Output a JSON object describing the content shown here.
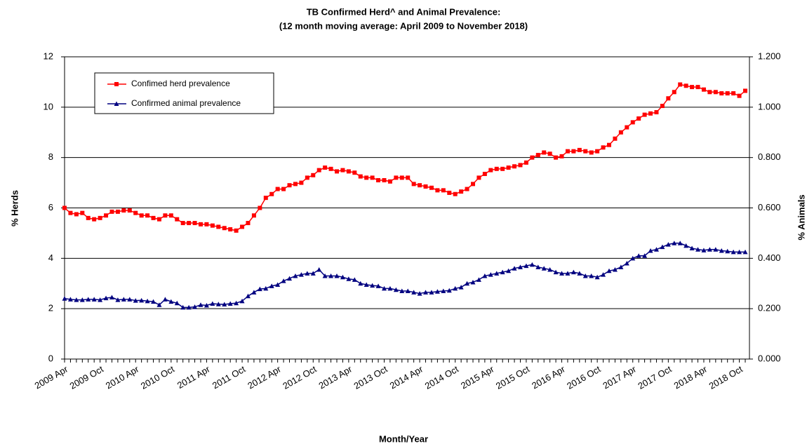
{
  "chart_data": {
    "type": "line",
    "title": "TB Confirmed Herd^ and Animal Prevalence:",
    "subtitle": "(12 month moving average: April 2009 to November 2018)",
    "x_label": "Month/Year",
    "y_label": "% Herds",
    "y2_label": "% Animals",
    "categories": [
      "2009 Apr",
      null,
      null,
      null,
      null,
      null,
      "2009 Oct",
      null,
      null,
      null,
      null,
      null,
      "2010 Apr",
      null,
      null,
      null,
      null,
      null,
      "2010 Oct",
      null,
      null,
      null,
      null,
      null,
      "2011 Apr",
      null,
      null,
      null,
      null,
      null,
      "2011 Oct",
      null,
      null,
      null,
      null,
      null,
      "2012 Apr",
      null,
      null,
      null,
      null,
      null,
      "2012 Oct",
      null,
      null,
      null,
      null,
      null,
      "2013 Apr",
      null,
      null,
      null,
      null,
      null,
      "2013 Oct",
      null,
      null,
      null,
      null,
      null,
      "2014 Apr",
      null,
      null,
      null,
      null,
      null,
      "2014 Oct",
      null,
      null,
      null,
      null,
      null,
      "2015 Apr",
      null,
      null,
      null,
      null,
      null,
      "2015 Oct",
      null,
      null,
      null,
      null,
      null,
      "2016 Apr",
      null,
      null,
      null,
      null,
      null,
      "2016 Oct",
      null,
      null,
      null,
      null,
      null,
      "2017 Apr",
      null,
      null,
      null,
      null,
      null,
      "2017 Oct",
      null,
      null,
      null,
      null,
      null,
      "2018 Apr",
      null,
      null,
      null,
      null,
      null,
      "2018 Oct",
      null
    ],
    "series": [
      {
        "name": "Confimed herd prevalence",
        "color": "#ff0000",
        "marker": "square",
        "values": [
          6.0,
          5.8,
          5.75,
          5.8,
          5.6,
          5.55,
          5.6,
          5.7,
          5.85,
          5.85,
          5.9,
          5.9,
          5.8,
          5.7,
          5.7,
          5.6,
          5.55,
          5.7,
          5.7,
          5.55,
          5.4,
          5.4,
          5.4,
          5.35,
          5.35,
          5.3,
          5.25,
          5.2,
          5.15,
          5.1,
          5.25,
          5.4,
          5.7,
          6.0,
          6.4,
          6.55,
          6.75,
          6.75,
          6.9,
          6.95,
          7.0,
          7.2,
          7.3,
          7.5,
          7.6,
          7.55,
          7.45,
          7.5,
          7.45,
          7.4,
          7.25,
          7.2,
          7.2,
          7.1,
          7.1,
          7.05,
          7.2,
          7.2,
          7.2,
          6.95,
          6.9,
          6.85,
          6.8,
          6.7,
          6.7,
          6.6,
          6.55,
          6.65,
          6.75,
          6.95,
          7.2,
          7.35,
          7.5,
          7.55,
          7.55,
          7.6,
          7.65,
          7.7,
          7.8,
          8.0,
          8.1,
          8.2,
          8.15,
          8.0,
          8.05,
          8.25,
          8.25,
          8.3,
          8.25,
          8.2,
          8.25,
          8.4,
          8.5,
          8.75,
          9.0,
          9.2,
          9.4,
          9.55,
          9.7,
          9.75,
          9.8,
          10.05,
          10.35,
          10.6,
          10.9,
          10.85,
          10.8,
          10.8,
          10.7,
          10.6,
          10.6,
          10.55,
          10.55,
          10.55,
          10.45,
          10.65
        ]
      },
      {
        "name": "Confirmed animal prevalence",
        "color": "#000080",
        "marker": "triangle",
        "axis": "y2",
        "values": [
          0.24,
          0.237,
          0.235,
          0.235,
          0.237,
          0.237,
          0.235,
          0.242,
          0.245,
          0.235,
          0.237,
          0.237,
          0.232,
          0.233,
          0.23,
          0.228,
          0.215,
          0.237,
          0.228,
          0.222,
          0.205,
          0.205,
          0.207,
          0.215,
          0.213,
          0.22,
          0.218,
          0.217,
          0.22,
          0.222,
          0.23,
          0.25,
          0.265,
          0.278,
          0.28,
          0.29,
          0.295,
          0.31,
          0.32,
          0.33,
          0.335,
          0.34,
          0.34,
          0.355,
          0.33,
          0.33,
          0.33,
          0.325,
          0.318,
          0.315,
          0.3,
          0.295,
          0.292,
          0.29,
          0.28,
          0.28,
          0.275,
          0.27,
          0.27,
          0.265,
          0.26,
          0.265,
          0.265,
          0.268,
          0.27,
          0.272,
          0.28,
          0.285,
          0.3,
          0.305,
          0.315,
          0.33,
          0.335,
          0.34,
          0.345,
          0.35,
          0.36,
          0.365,
          0.37,
          0.375,
          0.365,
          0.36,
          0.355,
          0.345,
          0.34,
          0.34,
          0.345,
          0.34,
          0.33,
          0.33,
          0.325,
          0.335,
          0.35,
          0.355,
          0.365,
          0.38,
          0.4,
          0.41,
          0.41,
          0.43,
          0.435,
          0.445,
          0.455,
          0.46,
          0.46,
          0.45,
          0.44,
          0.435,
          0.432,
          0.435,
          0.435,
          0.43,
          0.428,
          0.425,
          0.425,
          0.425
        ]
      }
    ],
    "ylim": [
      0,
      12
    ],
    "yticks": [
      0,
      2,
      4,
      6,
      8,
      10,
      12
    ],
    "y2lim": [
      0,
      1.2
    ],
    "y2ticks": [
      {
        "value": 0,
        "label": "0.000"
      },
      {
        "value": 0.2,
        "label": "0.200"
      },
      {
        "value": 0.4,
        "label": "0.400"
      },
      {
        "value": 0.6,
        "label": "0.600"
      },
      {
        "value": 0.8,
        "label": "0.800"
      },
      {
        "value": 1.0,
        "label": "1.000"
      },
      {
        "value": 1.2,
        "label": "1.200"
      }
    ],
    "grid": true,
    "legend": "upper-left"
  }
}
